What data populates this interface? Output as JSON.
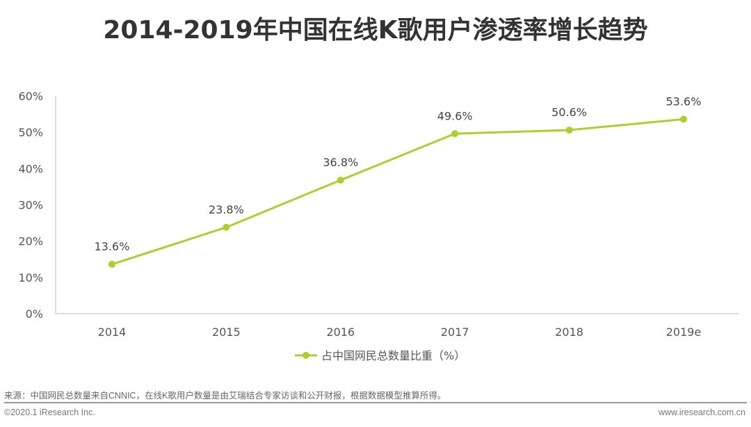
{
  "chart_data": {
    "type": "line",
    "title": "2014-2019年中国在线K歌用户渗透率增长趋势",
    "categories": [
      "2014",
      "2015",
      "2016",
      "2017",
      "2018",
      "2019e"
    ],
    "series": [
      {
        "name": "占中国网民总数量比重（%）",
        "values": [
          13.6,
          23.8,
          36.8,
          49.6,
          50.6,
          53.6
        ],
        "color": "#a9d02c"
      }
    ],
    "data_labels": [
      "13.6%",
      "23.8%",
      "36.8%",
      "49.6%",
      "50.6%",
      "53.6%"
    ],
    "yticks": [
      "0%",
      "10%",
      "20%",
      "30%",
      "40%",
      "50%",
      "60%"
    ],
    "ylim": [
      0,
      60
    ],
    "xlabel": "",
    "ylabel": "",
    "grid": false,
    "legend_position": "bottom"
  },
  "footer": {
    "source": "来源：中国网民总数量来自CNNIC，在线K歌用户数量是由艾瑞结合专家访谈和公开财报，根据数据模型推算所得。",
    "copyright": "©2020.1 iResearch Inc.",
    "website": "www.iresearch.com.cn"
  }
}
